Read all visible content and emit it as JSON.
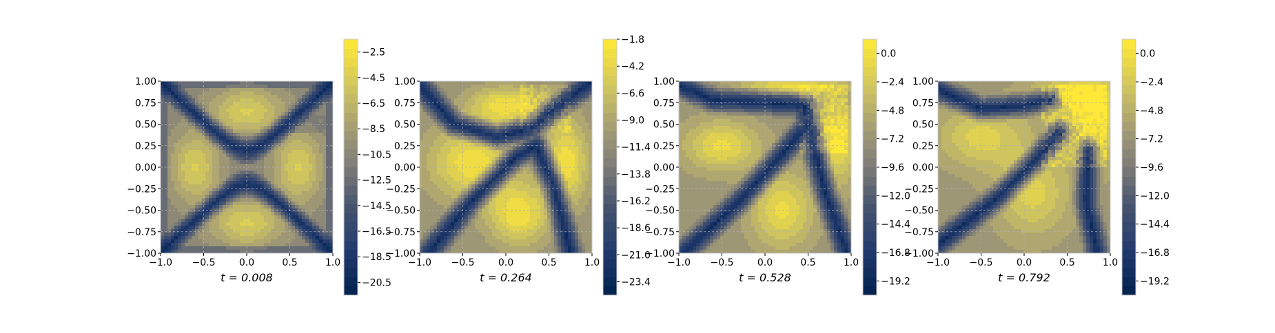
{
  "figure": {
    "colormap": "cividis",
    "colors": {
      "low": "#00224e",
      "mid": "#7c7b78",
      "high": "#fee838",
      "grid": "#b0b0b0"
    }
  },
  "chart_data": [
    {
      "type": "heatmap",
      "title": "$t=0.008$",
      "title_display": "t = 0.008",
      "t": 0.008,
      "xlim": [
        -1.0,
        1.0
      ],
      "ylim": [
        -1.0,
        1.0
      ],
      "xticks": [
        -1.0,
        -0.5,
        0.0,
        0.5,
        1.0
      ],
      "xtick_labels": [
        "−1.0",
        "−0.5",
        "0.0",
        "0.5",
        "1.0"
      ],
      "yticks": [
        1.0,
        0.75,
        0.5,
        0.25,
        0.0,
        -0.25,
        -0.5,
        -0.75,
        -1.0
      ],
      "ytick_labels": [
        "1.00",
        "0.75",
        "0.50",
        "0.25",
        "0.00",
        "−0.25",
        "−0.50",
        "−0.75",
        "−1.00"
      ],
      "grid": true,
      "colorbar": {
        "range": [
          -21.5,
          -1.5
        ],
        "ticks": [
          -2.5,
          -4.5,
          -6.5,
          -8.5,
          -10.5,
          -12.5,
          -14.5,
          -16.5,
          -18.5,
          -20.5
        ],
        "tick_labels": [
          "−2.5",
          "−4.5",
          "−6.5",
          "−8.5",
          "−10.5",
          "−12.5",
          "−14.5",
          "−16.5",
          "−18.5",
          "−20.5"
        ]
      }
    },
    {
      "type": "heatmap",
      "title": "$t=0.264$",
      "title_display": "t = 0.264",
      "t": 0.264,
      "xlim": [
        -1.0,
        1.0
      ],
      "ylim": [
        -1.0,
        1.0
      ],
      "xticks": [
        -1.0,
        -0.5,
        0.0,
        0.5,
        1.0
      ],
      "xtick_labels": [
        "−1.0",
        "−0.5",
        "0.0",
        "0.5",
        "1.0"
      ],
      "yticks": [
        1.0,
        0.75,
        0.5,
        0.25,
        0.0,
        -0.25,
        -0.5,
        -0.75,
        -1.0
      ],
      "ytick_labels": [
        "1.00",
        "0.75",
        "0.50",
        "0.25",
        "0.00",
        "−0.25",
        "−0.50",
        "−0.75",
        "−1.00"
      ],
      "grid": true,
      "colorbar": {
        "range": [
          -24.6,
          -1.8
        ],
        "ticks": [
          -1.8,
          -4.2,
          -6.6,
          -9.0,
          -11.4,
          -13.8,
          -16.2,
          -18.6,
          -21.0,
          -23.4
        ],
        "tick_labels": [
          "−1.8",
          "−4.2",
          "−6.6",
          "−9.0",
          "−11.4",
          "−13.8",
          "−16.2",
          "−18.6",
          "−21.0",
          "−23.4"
        ]
      }
    },
    {
      "type": "heatmap",
      "title": "$t=0.528$",
      "title_display": "t = 0.528",
      "t": 0.528,
      "xlim": [
        -1.0,
        1.0
      ],
      "ylim": [
        -1.0,
        1.0
      ],
      "xticks": [
        -1.0,
        -0.5,
        0.0,
        0.5,
        1.0
      ],
      "xtick_labels": [
        "−1.0",
        "−0.5",
        "0.0",
        "0.5",
        "1.0"
      ],
      "yticks": [
        1.0,
        0.75,
        0.5,
        0.25,
        0.0,
        -0.25,
        -0.5,
        -0.75,
        -1.0
      ],
      "ytick_labels": [
        "1.00",
        "0.75",
        "0.50",
        "0.25",
        "0.00",
        "−0.25",
        "−0.50",
        "−0.75",
        "−1.00"
      ],
      "grid": true,
      "colorbar": {
        "range": [
          -20.4,
          1.2
        ],
        "ticks": [
          0.0,
          -2.4,
          -4.8,
          -7.2,
          -9.6,
          -12.0,
          -14.4,
          -16.8,
          -19.2
        ],
        "tick_labels": [
          "0.0",
          "−2.4",
          "−4.8",
          "−7.2",
          "−9.6",
          "−12.0",
          "−14.4",
          "−16.8",
          "−19.2"
        ]
      }
    },
    {
      "type": "heatmap",
      "title": "$t=0.792$",
      "title_display": "t = 0.792",
      "t": 0.792,
      "xlim": [
        -1.0,
        1.0
      ],
      "ylim": [
        -1.0,
        1.0
      ],
      "xticks": [
        -1.0,
        -0.5,
        0.0,
        0.5,
        1.0
      ],
      "xtick_labels": [
        "−1.0",
        "−0.5",
        "0.0",
        "0.5",
        "1.0"
      ],
      "yticks": [
        1.0,
        0.75,
        0.5,
        0.25,
        0.0,
        -0.25,
        -0.5,
        -0.75,
        -1.0
      ],
      "ytick_labels": [
        "1.00",
        "0.75",
        "0.50",
        "0.25",
        "0.00",
        "−0.25",
        "−0.50",
        "−0.75",
        "−1.00"
      ],
      "grid": true,
      "colorbar": {
        "range": [
          -20.4,
          1.2
        ],
        "ticks": [
          0.0,
          -2.4,
          -4.8,
          -7.2,
          -9.6,
          -12.0,
          -14.4,
          -16.8,
          -19.2
        ],
        "tick_labels": [
          "0.0",
          "−2.4",
          "−4.8",
          "−7.2",
          "−9.6",
          "−12.0",
          "−14.4",
          "−16.8",
          "−19.2"
        ]
      }
    }
  ]
}
